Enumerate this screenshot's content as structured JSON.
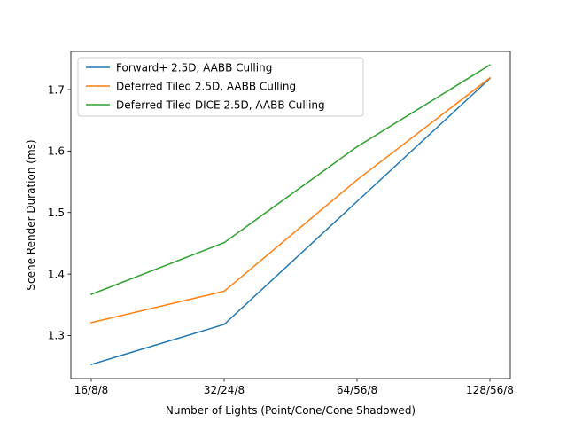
{
  "chart_data": {
    "type": "line",
    "categories": [
      "16/8/8",
      "32/24/8",
      "64/56/8",
      "128/56/8"
    ],
    "series": [
      {
        "name": "Forward+ 2.5D, AABB Culling",
        "color": "#1f77b4",
        "values": [
          1.253,
          1.318,
          1.518,
          1.718
        ]
      },
      {
        "name": "Deferred Tiled 2.5D, AABB Culling",
        "color": "#ff7f0e",
        "values": [
          1.321,
          1.372,
          1.553,
          1.719
        ]
      },
      {
        "name": "Deferred Tiled DICE 2.5D, AABB Culling",
        "color": "#2ca02c",
        "values": [
          1.367,
          1.451,
          1.607,
          1.74
        ]
      }
    ],
    "xlabel": "Number of Lights (Point/Cone/Cone Shadowed)",
    "ylabel": "Scene Render Duration (ms)",
    "ylim": [
      1.23,
      1.762
    ],
    "yticks": [
      1.3,
      1.4,
      1.5,
      1.6,
      1.7
    ],
    "ytick_labels": [
      "1.3",
      "1.4",
      "1.5",
      "1.6",
      "1.7"
    ],
    "grid": false,
    "legend_position": "upper-left"
  }
}
